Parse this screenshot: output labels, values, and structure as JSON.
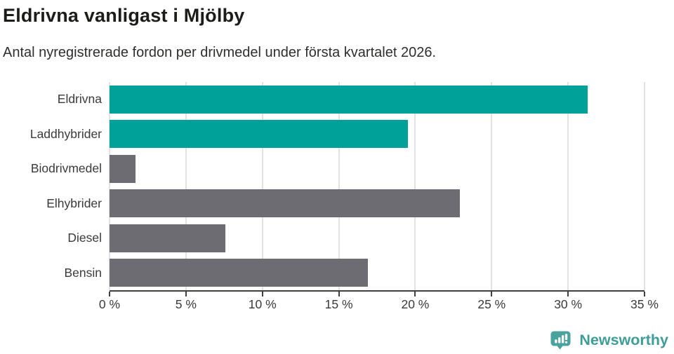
{
  "header": {
    "title": "Eldrivna vanligast i Mjölby",
    "subtitle": "Antal nyregistrerade fordon per drivmedel under första kvartalet 2026."
  },
  "chart_data": {
    "type": "bar",
    "orientation": "horizontal",
    "title": "Eldrivna vanligast i Mjölby",
    "subtitle": "Antal nyregistrerade fordon per drivmedel under första kvartalet 2026.",
    "categories": [
      "Eldrivna",
      "Laddhybrider",
      "Biodrivmedel",
      "Elhybrider",
      "Diesel",
      "Bensin"
    ],
    "values": [
      31.3,
      19.5,
      1.7,
      22.9,
      7.6,
      16.9
    ],
    "unit": "%",
    "bar_colors": [
      "#00a199",
      "#00a199",
      "#6c6c72",
      "#6c6c72",
      "#6c6c72",
      "#6c6c72"
    ],
    "highlighted_categories": [
      "Eldrivna",
      "Laddhybrider"
    ],
    "x_ticks": [
      "0 %",
      "5 %",
      "10 %",
      "15 %",
      "20 %",
      "25 %",
      "30 %",
      "35 %"
    ],
    "x_tick_values": [
      0,
      5,
      10,
      15,
      20,
      25,
      30,
      35
    ],
    "xlim": [
      0,
      35
    ],
    "xlabel": "",
    "ylabel": "",
    "grid": true,
    "legend": "none"
  },
  "colors": {
    "highlight_bar": "#00a199",
    "default_bar": "#6c6c72",
    "gridline": "#e3e3e3",
    "axis": "#3f3f3f",
    "text": "#3a3a3a",
    "brand": "#3f9d99"
  },
  "footer": {
    "brand": "Newsworthy",
    "logo_icon": "newsworthy-chart-bubble-icon"
  }
}
